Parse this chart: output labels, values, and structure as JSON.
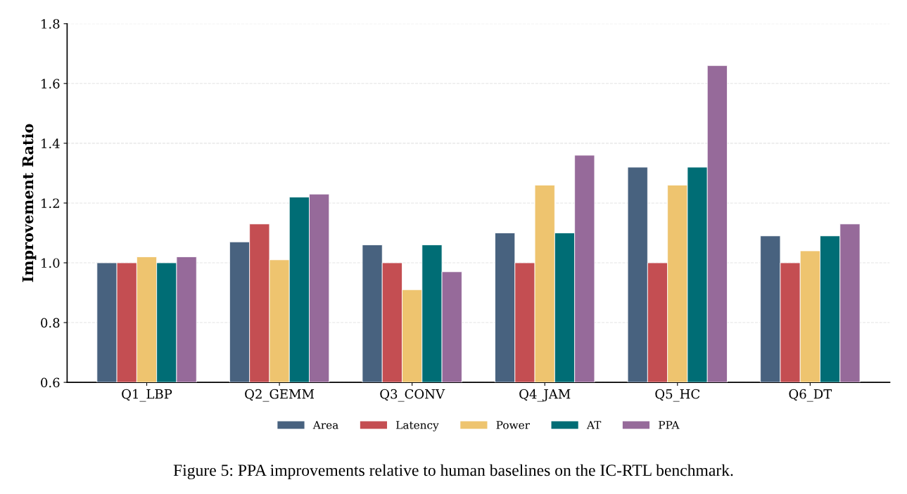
{
  "chart_data": {
    "type": "bar",
    "ylabel": "Improvement Ratio",
    "categories": [
      "Q1_LBP",
      "Q2_GEMM",
      "Q3_CONV",
      "Q4_JAM",
      "Q5_HC",
      "Q6_DT"
    ],
    "series": [
      {
        "name": "Area",
        "color": "#48627f",
        "values": [
          1.0,
          1.07,
          1.06,
          1.1,
          1.32,
          1.09
        ]
      },
      {
        "name": "Latency",
        "color": "#c44e52",
        "values": [
          1.0,
          1.13,
          1.0,
          1.0,
          1.0,
          1.0
        ]
      },
      {
        "name": "Power",
        "color": "#eec46f",
        "values": [
          1.02,
          1.01,
          0.91,
          1.26,
          1.26,
          1.04
        ]
      },
      {
        "name": "AT",
        "color": "#006d75",
        "values": [
          1.0,
          1.22,
          1.06,
          1.1,
          1.32,
          1.09
        ]
      },
      {
        "name": "PPA",
        "color": "#966a9a",
        "values": [
          1.02,
          1.23,
          0.97,
          1.36,
          1.66,
          1.13
        ]
      }
    ],
    "ylim": [
      0.6,
      1.8
    ],
    "yticks": [
      0.6,
      0.8,
      {
        "value": 1.0,
        "label": "1.0"
      },
      1.2,
      1.4,
      1.6,
      1.8
    ],
    "grid": "y",
    "legend": "bottom",
    "annotations": [
      "Figure 5: PPA improvements relative to human baselines on the IC-RTL benchmark."
    ]
  }
}
